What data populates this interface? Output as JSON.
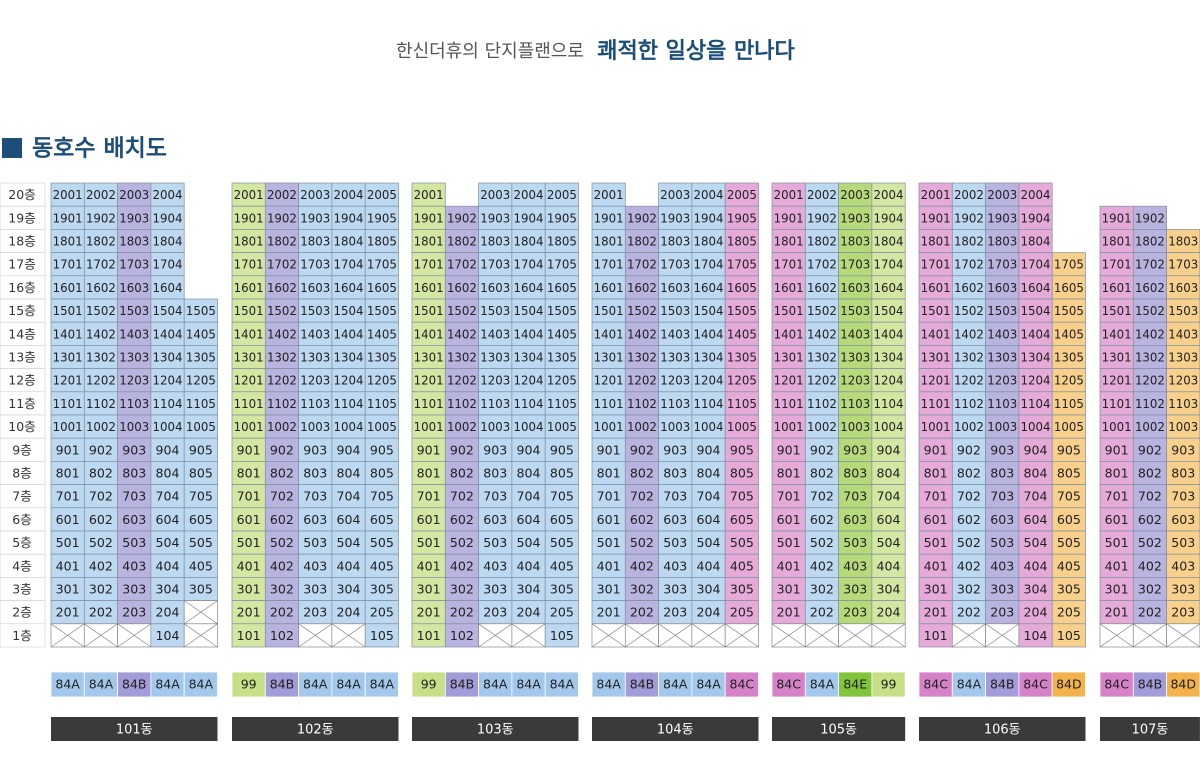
{
  "header": {
    "subtitle": "한신더휴의 단지플랜으로",
    "title": "쾌적한 일상을 만나다"
  },
  "section_title": "동호수 배치도",
  "type_colors": {
    "84A": {
      "cell": "#bdd8f1",
      "tag": "#a3c8ec"
    },
    "84B": {
      "cell": "#b9b3e0",
      "tag": "#a29cd8"
    },
    "84C": {
      "cell": "#e6aad9",
      "tag": "#d682c8"
    },
    "84D": {
      "cell": "#f8d08b",
      "tag": "#f4b24c"
    },
    "99": {
      "cell": "#d4e7a2",
      "tag": "#c7df86"
    },
    "84E": {
      "cell": "#b6d97a",
      "tag": "#82c43c"
    }
  },
  "floor_labels": [
    "20층",
    "19층",
    "18층",
    "17층",
    "16층",
    "15층",
    "14층",
    "13층",
    "12층",
    "11층",
    "10층",
    "9층",
    "8층",
    "7층",
    "6층",
    "5층",
    "4층",
    "3층",
    "2층",
    "1층"
  ],
  "buildings": [
    {
      "name": "101동",
      "columns": [
        {
          "type": "84A",
          "cells": [
            "2001",
            "1901",
            "1801",
            "1701",
            "1601",
            "1501",
            "1401",
            "1301",
            "1201",
            "1101",
            "1001",
            "901",
            "801",
            "701",
            "601",
            "501",
            "401",
            "301",
            "201",
            null
          ],
          "crossed_floors": [
            1
          ]
        },
        {
          "type": "84A",
          "cells": [
            "2002",
            "1902",
            "1802",
            "1702",
            "1602",
            "1502",
            "1402",
            "1302",
            "1202",
            "1102",
            "1002",
            "902",
            "802",
            "702",
            "602",
            "502",
            "402",
            "302",
            "202",
            null
          ],
          "crossed_floors": [
            1
          ]
        },
        {
          "type": "84B",
          "cells": [
            "2003",
            "1903",
            "1803",
            "1703",
            "1603",
            "1503",
            "1403",
            "1303",
            "1203",
            "1103",
            "1003",
            "903",
            "803",
            "703",
            "603",
            "503",
            "403",
            "303",
            "203",
            null
          ],
          "crossed_floors": [
            1
          ]
        },
        {
          "type": "84A",
          "cells": [
            "2004",
            "1904",
            "1804",
            "1704",
            "1604",
            "1504",
            "1404",
            "1304",
            "1204",
            "1104",
            "1004",
            "904",
            "804",
            "704",
            "604",
            "504",
            "404",
            "304",
            "204",
            "104"
          ]
        },
        {
          "type": "84A",
          "cells": [
            null,
            null,
            null,
            null,
            null,
            "1505",
            "1405",
            "1305",
            "1205",
            "1105",
            "1005",
            "905",
            "805",
            "705",
            "605",
            "505",
            "405",
            "305",
            null,
            null
          ],
          "crossed_floors": [
            2,
            1
          ]
        }
      ]
    },
    {
      "name": "102동",
      "columns": [
        {
          "type": "99",
          "cells": [
            "2001",
            "1901",
            "1801",
            "1701",
            "1601",
            "1501",
            "1401",
            "1301",
            "1201",
            "1101",
            "1001",
            "901",
            "801",
            "701",
            "601",
            "501",
            "401",
            "301",
            "201",
            "101"
          ]
        },
        {
          "type": "84B",
          "cells": [
            "2002",
            "1902",
            "1802",
            "1702",
            "1602",
            "1502",
            "1402",
            "1302",
            "1202",
            "1102",
            "1002",
            "902",
            "802",
            "702",
            "602",
            "502",
            "402",
            "302",
            "202",
            "102"
          ]
        },
        {
          "type": "84A",
          "cells": [
            "2003",
            "1903",
            "1803",
            "1703",
            "1603",
            "1503",
            "1403",
            "1303",
            "1203",
            "1103",
            "1003",
            "903",
            "803",
            "703",
            "603",
            "503",
            "403",
            "303",
            "203",
            null
          ],
          "crossed_floors": [
            1
          ]
        },
        {
          "type": "84A",
          "cells": [
            "2004",
            "1904",
            "1804",
            "1704",
            "1604",
            "1504",
            "1404",
            "1304",
            "1204",
            "1104",
            "1004",
            "904",
            "804",
            "704",
            "604",
            "504",
            "404",
            "304",
            "204",
            null
          ],
          "crossed_floors": [
            1
          ]
        },
        {
          "type": "84A",
          "cells": [
            "2005",
            "1905",
            "1805",
            "1705",
            "1605",
            "1505",
            "1405",
            "1305",
            "1205",
            "1105",
            "1005",
            "905",
            "805",
            "705",
            "605",
            "505",
            "405",
            "305",
            "205",
            "105"
          ]
        }
      ]
    },
    {
      "name": "103동",
      "columns": [
        {
          "type": "99",
          "cells": [
            "2001",
            "1901",
            "1801",
            "1701",
            "1601",
            "1501",
            "1401",
            "1301",
            "1201",
            "1101",
            "1001",
            "901",
            "801",
            "701",
            "601",
            "501",
            "401",
            "301",
            "201",
            "101"
          ]
        },
        {
          "type": "84B",
          "cells": [
            null,
            "1902",
            "1802",
            "1702",
            "1602",
            "1502",
            "1402",
            "1302",
            "1202",
            "1102",
            "1002",
            "902",
            "802",
            "702",
            "602",
            "502",
            "402",
            "302",
            "202",
            "102"
          ]
        },
        {
          "type": "84A",
          "cells": [
            "2003",
            "1903",
            "1803",
            "1703",
            "1603",
            "1503",
            "1403",
            "1303",
            "1203",
            "1103",
            "1003",
            "903",
            "803",
            "703",
            "603",
            "503",
            "403",
            "303",
            "203",
            null
          ],
          "crossed_floors": [
            1
          ]
        },
        {
          "type": "84A",
          "cells": [
            "2004",
            "1904",
            "1804",
            "1704",
            "1604",
            "1504",
            "1404",
            "1304",
            "1204",
            "1104",
            "1004",
            "904",
            "804",
            "704",
            "604",
            "504",
            "404",
            "304",
            "204",
            null
          ],
          "crossed_floors": [
            1
          ]
        },
        {
          "type": "84A",
          "cells": [
            "2005",
            "1905",
            "1805",
            "1705",
            "1605",
            "1505",
            "1405",
            "1305",
            "1205",
            "1105",
            "1005",
            "905",
            "805",
            "705",
            "605",
            "505",
            "405",
            "305",
            "205",
            "105"
          ]
        }
      ]
    },
    {
      "name": "104동",
      "columns": [
        {
          "type": "84A",
          "cells": [
            "2001",
            "1901",
            "1801",
            "1701",
            "1601",
            "1501",
            "1401",
            "1301",
            "1201",
            "1101",
            "1001",
            "901",
            "801",
            "701",
            "601",
            "501",
            "401",
            "301",
            "201",
            null
          ],
          "crossed_floors": [
            1
          ]
        },
        {
          "type": "84B",
          "cells": [
            null,
            "1902",
            "1802",
            "1702",
            "1602",
            "1502",
            "1402",
            "1302",
            "1202",
            "1102",
            "1002",
            "902",
            "802",
            "702",
            "602",
            "502",
            "402",
            "302",
            "202",
            null
          ],
          "crossed_floors": [
            1
          ]
        },
        {
          "type": "84A",
          "cells": [
            "2003",
            "1903",
            "1803",
            "1703",
            "1603",
            "1503",
            "1403",
            "1303",
            "1203",
            "1103",
            "1003",
            "903",
            "803",
            "703",
            "603",
            "503",
            "403",
            "303",
            "203",
            null
          ],
          "crossed_floors": [
            1
          ]
        },
        {
          "type": "84A",
          "cells": [
            "2004",
            "1904",
            "1804",
            "1704",
            "1604",
            "1504",
            "1404",
            "1304",
            "1204",
            "1104",
            "1004",
            "904",
            "804",
            "704",
            "604",
            "504",
            "404",
            "304",
            "204",
            null
          ],
          "crossed_floors": [
            1
          ]
        },
        {
          "type": "84C",
          "cells": [
            "2005",
            "1905",
            "1805",
            "1705",
            "1605",
            "1505",
            "1405",
            "1305",
            "1205",
            "1105",
            "1005",
            "905",
            "805",
            "705",
            "605",
            "505",
            "405",
            "305",
            "205",
            null
          ],
          "crossed_floors": [
            1
          ]
        }
      ]
    },
    {
      "name": "105동",
      "columns": [
        {
          "type": "84C",
          "cells": [
            "2001",
            "1901",
            "1801",
            "1701",
            "1601",
            "1501",
            "1401",
            "1301",
            "1201",
            "1101",
            "1001",
            "901",
            "801",
            "701",
            "601",
            "501",
            "401",
            "301",
            "201",
            null
          ],
          "crossed_floors": [
            1
          ]
        },
        {
          "type": "84A",
          "cells": [
            "2002",
            "1902",
            "1802",
            "1702",
            "1602",
            "1502",
            "1402",
            "1302",
            "1202",
            "1102",
            "1002",
            "902",
            "802",
            "702",
            "602",
            "502",
            "402",
            "302",
            "202",
            null
          ],
          "crossed_floors": [
            1
          ]
        },
        {
          "type": "84E",
          "cells": [
            "2003",
            "1903",
            "1803",
            "1703",
            "1603",
            "1503",
            "1403",
            "1303",
            "1203",
            "1103",
            "1003",
            "903",
            "803",
            "703",
            "603",
            "503",
            "403",
            "303",
            "203",
            null
          ],
          "crossed_floors": [
            1
          ]
        },
        {
          "type": "99",
          "cells": [
            "2004",
            "1904",
            "1804",
            "1704",
            "1604",
            "1504",
            "1404",
            "1304",
            "1204",
            "1104",
            "1004",
            "904",
            "804",
            "704",
            "604",
            "504",
            "404",
            "304",
            "204",
            null
          ],
          "crossed_floors": [
            1
          ]
        }
      ]
    },
    {
      "name": "106동",
      "columns": [
        {
          "type": "84C",
          "cells": [
            "2001",
            "1901",
            "1801",
            "1701",
            "1601",
            "1501",
            "1401",
            "1301",
            "1201",
            "1101",
            "1001",
            "901",
            "801",
            "701",
            "601",
            "501",
            "401",
            "301",
            "201",
            "101"
          ]
        },
        {
          "type": "84A",
          "cells": [
            "2002",
            "1902",
            "1802",
            "1702",
            "1602",
            "1502",
            "1402",
            "1302",
            "1202",
            "1102",
            "1002",
            "902",
            "802",
            "702",
            "602",
            "502",
            "402",
            "302",
            "202",
            null
          ],
          "crossed_floors": [
            1
          ]
        },
        {
          "type": "84B",
          "cells": [
            "2003",
            "1903",
            "1803",
            "1703",
            "1603",
            "1503",
            "1403",
            "1303",
            "1203",
            "1103",
            "1003",
            "903",
            "803",
            "703",
            "603",
            "503",
            "403",
            "303",
            "203",
            null
          ],
          "crossed_floors": [
            1
          ]
        },
        {
          "type": "84C",
          "cells": [
            "2004",
            "1904",
            "1804",
            "1704",
            "1604",
            "1504",
            "1404",
            "1304",
            "1204",
            "1104",
            "1004",
            "904",
            "804",
            "704",
            "604",
            "504",
            "404",
            "304",
            "204",
            "104"
          ]
        },
        {
          "type": "84D",
          "cells": [
            null,
            null,
            null,
            "1705",
            "1605",
            "1505",
            "1405",
            "1305",
            "1205",
            "1105",
            "1005",
            "905",
            "805",
            "705",
            "605",
            "505",
            "405",
            "305",
            "205",
            "105"
          ]
        }
      ]
    },
    {
      "name": "107동",
      "columns": [
        {
          "type": "84C",
          "cells": [
            null,
            "1901",
            "1801",
            "1701",
            "1601",
            "1501",
            "1401",
            "1301",
            "1201",
            "1101",
            "1001",
            "901",
            "801",
            "701",
            "601",
            "501",
            "401",
            "301",
            "201",
            null
          ],
          "crossed_floors": [
            1
          ]
        },
        {
          "type": "84B",
          "cells": [
            null,
            "1902",
            "1802",
            "1702",
            "1602",
            "1502",
            "1402",
            "1302",
            "1202",
            "1102",
            "1002",
            "902",
            "802",
            "702",
            "602",
            "502",
            "402",
            "302",
            "202",
            null
          ],
          "crossed_floors": [
            1
          ]
        },
        {
          "type": "84D",
          "cells": [
            null,
            null,
            "1803",
            "1703",
            "1603",
            "1503",
            "1403",
            "1303",
            "1203",
            "1103",
            "1003",
            "903",
            "803",
            "703",
            "603",
            "503",
            "403",
            "303",
            "203",
            null
          ],
          "crossed_floors": [
            1
          ]
        }
      ]
    }
  ]
}
